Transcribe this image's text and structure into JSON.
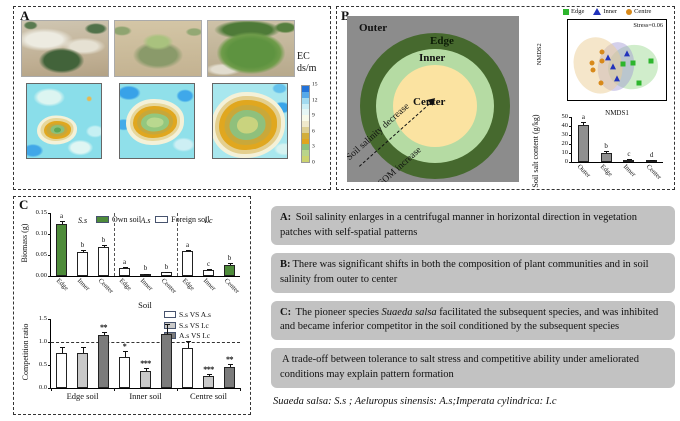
{
  "panel_a": {
    "label": "A",
    "photos": [
      "small-vegetation-patch-on-saline-soil",
      "medium-vegetation-patch",
      "large-dense-vegetation-patch"
    ],
    "ec_label": "EC",
    "ec_unit": "ds/m",
    "colorbar": {
      "ticks": [
        15,
        12,
        9,
        6,
        3,
        0
      ],
      "colors": [
        "#2272d9",
        "#57a9e9",
        "#a2daf0",
        "#cceef5",
        "#e6f7f5",
        "#f8fbea",
        "#efe9cc",
        "#ddd094",
        "#d2ae3a",
        "#e0a51e",
        "#8cc17c",
        "#b9d48b",
        "#ccd36f"
      ]
    },
    "contour_axis_ticks": [
      0,
      1,
      2,
      3,
      4,
      5
    ]
  },
  "panel_b": {
    "label": "B",
    "diagram": {
      "outer_label": "Outer",
      "edge_label": "Edge",
      "inner_label": "Inner",
      "center_label": "Center",
      "arrow_label_1": "Soil salinity decrease",
      "arrow_label_2": "SOM increase",
      "colors": {
        "outer": "#8c8c8c",
        "edge": "#46692e",
        "inner": "#b5dba3",
        "center": "#fbe3a1"
      }
    }
  },
  "panel_c": {
    "label": "C"
  },
  "notes": [
    {
      "prefix": "A:",
      "before": " Soil salinity enlarges in a centrifugal manner in horizontal direction in vegetation patches with self-spatial patterns",
      "italic": "",
      "after": ""
    },
    {
      "prefix": "B:",
      "before": "There was significant shifts in both the composition of plant communities and in soil salinity from outer to center",
      "italic": "",
      "after": ""
    },
    {
      "prefix": "C:",
      "before": " The pioneer species ",
      "italic": "Suaeda salsa",
      "after": " facilitated the subsequent species, and was inhibited and became inferior competitor in the soil conditioned by the subsequent species"
    },
    {
      "prefix": "",
      "before": "A trade-off between tolerance to salt stress and competitive ability under ameliorated conditions may explain pattern formation",
      "italic": "",
      "after": ""
    }
  ],
  "species_key": "Suaeda salsa: S.s ;  Aeluropus sinensis: A.s;Imperata cylindrica: I.c",
  "chart_data": [
    {
      "id": "ec-contours",
      "type": "heatmap",
      "description": "Three kriged EC (ds/m) contour maps of 5x5 m plots around vegetation patches of increasing size; low EC (0-3, green) at patch center, ring of intermediate EC (3-9, orange/tan), high EC (9-15, cyan/blue) in surrounding bare soil",
      "x_range": [
        0,
        5
      ],
      "y_range": [
        0,
        5
      ],
      "ticks": [
        0,
        1,
        2,
        3,
        4,
        5
      ],
      "colorbar_label": "EC ds/m",
      "colorbar_ticks": [
        15,
        12,
        9,
        6,
        3,
        0
      ],
      "patch_low_ec_centers": [
        [
          2,
          2
        ],
        [
          2.4,
          2.4
        ],
        [
          2.4,
          2.2
        ]
      ],
      "patch_relative_sizes": [
        "small",
        "medium",
        "large"
      ]
    },
    {
      "id": "nmds",
      "type": "scatter",
      "annotation": "Stress=0.06",
      "xlabel": "NMDS1",
      "ylabel": "NMDS2",
      "xlim": [
        -1.65,
        1.65
      ],
      "ylim": [
        -1.35,
        1.75
      ],
      "xticks": [
        "-1",
        "0",
        "1"
      ],
      "yticks": [
        "1.5",
        "1.0",
        "0.5",
        "0.0",
        "-0.5",
        "-1.0"
      ],
      "legend_position": "top",
      "series": [
        {
          "name": "Edge",
          "marker": "square",
          "color": "#2db52d",
          "points": [
            [
              0.2,
              0.05
            ],
            [
              0.55,
              0.08
            ],
            [
              1.15,
              0.15
            ],
            [
              0.75,
              -0.7
            ]
          ],
          "ellipse": {
            "cx": 0.55,
            "cy": -0.05,
            "rx": 0.85,
            "ry": 0.85,
            "rot": -12,
            "color": "rgba(150,215,140,0.45)"
          }
        },
        {
          "name": "Inner",
          "marker": "triangle",
          "color": "#2233bb",
          "points": [
            [
              -0.3,
              0.28
            ],
            [
              0.35,
              0.45
            ],
            [
              -0.12,
              -0.08
            ],
            [
              0.0,
              -0.55
            ]
          ],
          "ellipse": {
            "cx": -0.05,
            "cy": -0.05,
            "rx": 0.6,
            "ry": 0.95,
            "rot": 10,
            "color": "rgba(160,150,210,0.45)"
          }
        },
        {
          "name": "Centre",
          "marker": "circle",
          "color": "#d8891a",
          "points": [
            [
              -0.85,
              0.08
            ],
            [
              -0.5,
              0.52
            ],
            [
              -0.5,
              0.15
            ],
            [
              -0.8,
              -0.18
            ],
            [
              -0.55,
              -0.7
            ]
          ],
          "ellipse": {
            "cx": -0.65,
            "cy": 0.0,
            "rx": 0.8,
            "ry": 1.1,
            "rot": -18,
            "color": "rgba(235,205,150,0.5)"
          }
        }
      ]
    },
    {
      "id": "soil-salt",
      "type": "bar",
      "ylabel": "Soil salt content (g/kg)",
      "ylim": [
        0,
        50
      ],
      "yticks": [
        0,
        10,
        20,
        30,
        40,
        50
      ],
      "categories": [
        "Outer",
        "Edge",
        "Inner",
        "Center"
      ],
      "values": [
        41.5,
        10.2,
        2.6,
        2.2
      ],
      "errors": [
        3.5,
        1.8,
        0.6,
        0.5
      ],
      "letters": [
        "a",
        "b",
        "c",
        "d"
      ],
      "bar_color": "#8f8f8f"
    },
    {
      "id": "biomass",
      "type": "grouped-bar",
      "ylabel": "Biomass (g)",
      "xlabel": "Soil",
      "ylim": [
        0,
        0.15
      ],
      "yticks": [
        "0.00",
        "0.05",
        "0.10",
        "0.15"
      ],
      "legend": [
        {
          "label": "Own soil",
          "color": "#4e8b3a"
        },
        {
          "label": "Foreign soil",
          "color": "#ffffff"
        }
      ],
      "groups": [
        {
          "name": "S.s",
          "categories": [
            "Edge",
            "Inner",
            "Center"
          ],
          "values": [
            0.123,
            0.056,
            0.07
          ],
          "errors": [
            0.008,
            0.005,
            0.004
          ],
          "letters": [
            "a",
            "b",
            "b"
          ],
          "own": [
            true,
            false,
            false
          ]
        },
        {
          "name": "A.s",
          "categories": [
            "Edge",
            "Inner",
            "Center"
          ],
          "values": [
            0.019,
            0.005,
            0.009
          ],
          "errors": [
            0.002,
            0.001,
            0.001
          ],
          "letters": [
            "a",
            "b",
            "b"
          ],
          "own": [
            false,
            true,
            false
          ]
        },
        {
          "name": "I.c",
          "categories": [
            "Edge",
            "Inner",
            "Center"
          ],
          "values": [
            0.06,
            0.014,
            0.027
          ],
          "errors": [
            0.003,
            0.002,
            0.003
          ],
          "letters": [
            "a",
            "c",
            "b"
          ],
          "own": [
            false,
            false,
            true
          ]
        }
      ]
    },
    {
      "id": "competition-ratio",
      "type": "grouped-bar",
      "ylabel": "Competition ratio",
      "ylim": [
        0,
        1.5
      ],
      "yticks": [
        "0.0",
        "0.5",
        "1.0",
        "1.5"
      ],
      "reference_line": 1.0,
      "legend": [
        {
          "label": "S.s VS A.s",
          "color": "#ffffff"
        },
        {
          "label": "S.s VS I.c",
          "color": "#c9c9c9"
        },
        {
          "label": "A.s VS I.c",
          "color": "#7b7b7b"
        }
      ],
      "groups": [
        {
          "name": "Edge soil",
          "values": [
            0.77,
            0.77,
            1.16
          ],
          "errors": [
            0.13,
            0.13,
            0.06
          ],
          "sig": [
            "",
            "",
            "**"
          ]
        },
        {
          "name": "Inner soil",
          "values": [
            0.68,
            0.37,
            1.17
          ],
          "errors": [
            0.12,
            0.07,
            0.22
          ],
          "sig": [
            "*",
            "***",
            ""
          ]
        },
        {
          "name": "Centre soil",
          "values": [
            0.88,
            0.27,
            0.46
          ],
          "errors": [
            0.15,
            0.04,
            0.07
          ],
          "sig": [
            "",
            "***",
            "**"
          ]
        }
      ]
    }
  ]
}
